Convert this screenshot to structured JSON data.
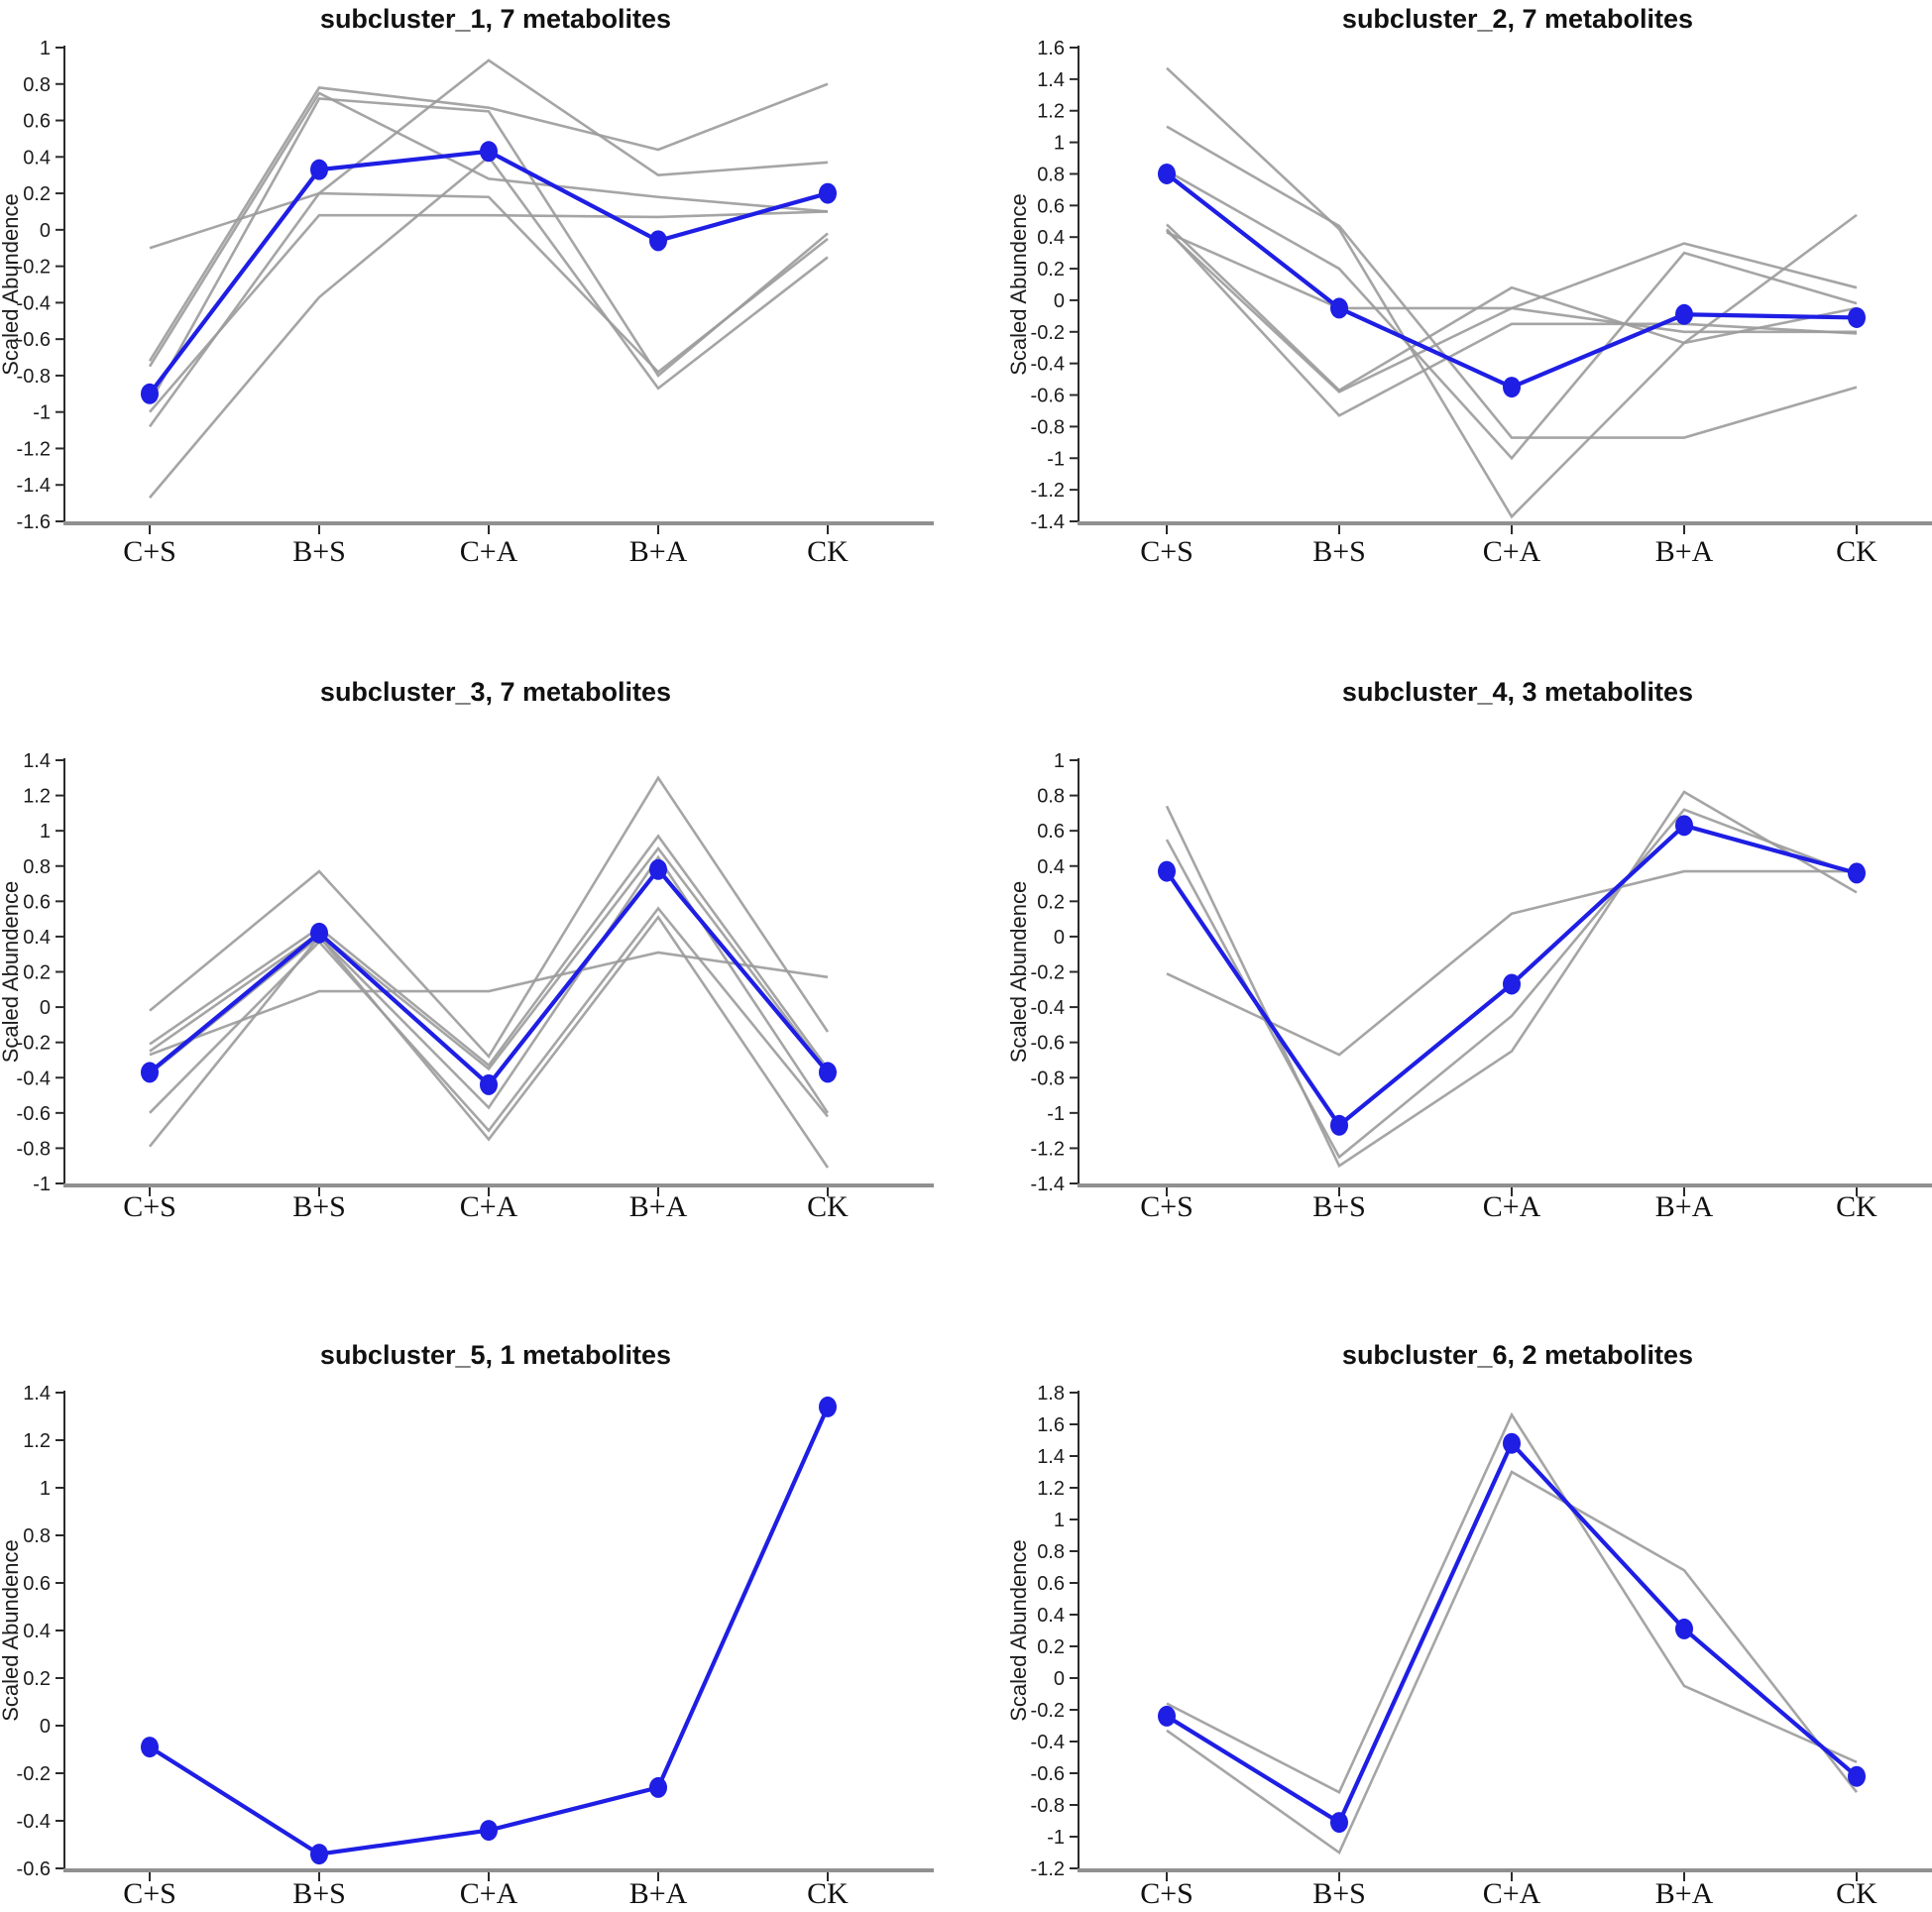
{
  "shared": {
    "y_axis_label": "Scaled Abundence",
    "categories": [
      "C+S",
      "B+S",
      "C+A",
      "B+A",
      "CK"
    ],
    "colors": {
      "mean_line": "#1e1ee4",
      "member_line": "#9b9b9b",
      "x_axis_line": "#909090",
      "spine": "#2b2b2b",
      "text": "#111111"
    }
  },
  "chart_data": [
    {
      "type": "line",
      "title": "subcluster_1, 7 metabolites",
      "xlabel": "",
      "ylabel": "Scaled Abundence",
      "categories": [
        "C+S",
        "B+S",
        "C+A",
        "B+A",
        "CK"
      ],
      "ylim": [
        -1.6,
        1.0
      ],
      "ytick_step": 0.2,
      "grid": false,
      "legend": "none",
      "mean_series": [
        -0.9,
        0.33,
        0.43,
        -0.06,
        0.2
      ],
      "member_series": [
        [
          -0.1,
          0.2,
          0.93,
          0.3,
          0.37
        ],
        [
          -0.72,
          0.78,
          0.67,
          0.44,
          0.8
        ],
        [
          -0.75,
          0.75,
          0.28,
          0.18,
          0.1
        ],
        [
          -0.95,
          0.72,
          0.65,
          -0.8,
          -0.02
        ],
        [
          -1.0,
          0.08,
          0.08,
          0.07,
          0.1
        ],
        [
          -1.08,
          0.2,
          0.18,
          -0.78,
          -0.05
        ],
        [
          -1.47,
          -0.37,
          0.4,
          -0.87,
          -0.15
        ]
      ]
    },
    {
      "type": "line",
      "title": "subcluster_2, 7 metabolites",
      "xlabel": "",
      "ylabel": "Scaled Abundence",
      "categories": [
        "C+S",
        "B+S",
        "C+A",
        "B+A",
        "CK"
      ],
      "ylim": [
        -1.4,
        1.6
      ],
      "ytick_step": 0.2,
      "grid": false,
      "legend": "none",
      "mean_series": [
        0.8,
        -0.05,
        -0.55,
        -0.09,
        -0.11
      ],
      "member_series": [
        [
          1.47,
          0.45,
          -1.37,
          -0.27,
          -0.05
        ],
        [
          1.1,
          0.47,
          -0.87,
          -0.87,
          -0.55
        ],
        [
          0.82,
          0.2,
          -1.0,
          0.3,
          -0.02
        ],
        [
          0.48,
          -0.57,
          0.08,
          -0.27,
          0.54
        ],
        [
          0.45,
          -0.73,
          -0.15,
          -0.15,
          -0.21
        ],
        [
          0.44,
          -0.58,
          -0.05,
          0.36,
          0.08
        ],
        [
          0.43,
          -0.05,
          -0.05,
          -0.2,
          -0.2
        ]
      ]
    },
    {
      "type": "line",
      "title": "subcluster_3, 7 metabolites",
      "xlabel": "",
      "ylabel": "Scaled Abundence",
      "categories": [
        "C+S",
        "B+S",
        "C+A",
        "B+A",
        "CK"
      ],
      "ylim": [
        -1.0,
        1.4
      ],
      "ytick_step": 0.2,
      "grid": false,
      "legend": "none",
      "mean_series": [
        -0.37,
        0.42,
        -0.44,
        0.78,
        -0.37
      ],
      "member_series": [
        [
          -0.02,
          0.77,
          -0.28,
          1.3,
          -0.14
        ],
        [
          -0.21,
          0.45,
          -0.33,
          0.97,
          -0.35
        ],
        [
          -0.25,
          0.42,
          -0.35,
          0.9,
          -0.37
        ],
        [
          -0.38,
          0.4,
          -0.57,
          0.85,
          -0.6
        ],
        [
          -0.6,
          0.37,
          -0.7,
          0.56,
          -0.62
        ],
        [
          -0.79,
          0.4,
          -0.75,
          0.51,
          -0.91
        ],
        [
          -0.27,
          0.09,
          0.09,
          0.31,
          0.17
        ]
      ]
    },
    {
      "type": "line",
      "title": "subcluster_4, 3 metabolites",
      "xlabel": "",
      "ylabel": "Scaled Abundence",
      "categories": [
        "C+S",
        "B+S",
        "C+A",
        "B+A",
        "CK"
      ],
      "ylim": [
        -1.4,
        1.0
      ],
      "ytick_step": 0.2,
      "grid": false,
      "legend": "none",
      "mean_series": [
        0.37,
        -1.07,
        -0.27,
        0.63,
        0.36
      ],
      "member_series": [
        [
          0.74,
          -1.3,
          -0.65,
          0.82,
          0.25
        ],
        [
          0.55,
          -1.25,
          -0.45,
          0.72,
          0.35
        ],
        [
          -0.21,
          -0.67,
          0.13,
          0.37,
          0.37
        ]
      ]
    },
    {
      "type": "line",
      "title": "subcluster_5, 1 metabolites",
      "xlabel": "",
      "ylabel": "Scaled Abundence",
      "categories": [
        "C+S",
        "B+S",
        "C+A",
        "B+A",
        "CK"
      ],
      "ylim": [
        -0.6,
        1.4
      ],
      "ytick_step": 0.2,
      "grid": false,
      "legend": "none",
      "mean_series": [
        -0.09,
        -0.54,
        -0.44,
        -0.26,
        1.34
      ],
      "member_series": [
        [
          -0.09,
          -0.54,
          -0.44,
          -0.26,
          1.34
        ]
      ]
    },
    {
      "type": "line",
      "title": "subcluster_6, 2 metabolites",
      "xlabel": "",
      "ylabel": "Scaled Abundence",
      "categories": [
        "C+S",
        "B+S",
        "C+A",
        "B+A",
        "CK"
      ],
      "ylim": [
        -1.2,
        1.8
      ],
      "ytick_step": 0.2,
      "grid": false,
      "legend": "none",
      "mean_series": [
        -0.24,
        -0.91,
        1.48,
        0.31,
        -0.62
      ],
      "member_series": [
        [
          -0.16,
          -0.72,
          1.66,
          -0.05,
          -0.53
        ],
        [
          -0.33,
          -1.1,
          1.3,
          0.68,
          -0.72
        ]
      ]
    }
  ]
}
